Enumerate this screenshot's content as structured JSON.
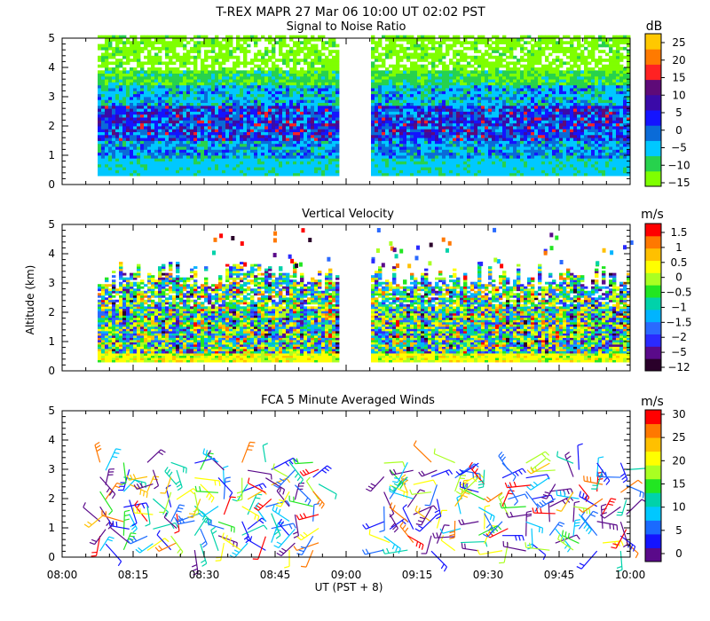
{
  "figure": {
    "title": "T-REX   MAPR 27 Mar 06   10:00 UT   02:02   PST",
    "ylabel": "Altitude (km)",
    "xlabel": "UT  (PST + 8)",
    "x_ticks": [
      "08:00",
      "08:15",
      "08:30",
      "08:45",
      "09:00",
      "09:15",
      "09:30",
      "09:45",
      "10:00"
    ],
    "y_ticks": [
      "0",
      "1",
      "2",
      "3",
      "4",
      "5"
    ]
  },
  "colors": {
    "snr_scale": [
      "#7fff00",
      "#27d24d",
      "#00c8ff",
      "#0a6bd8",
      "#1414ff",
      "#3a0aa8",
      "#5e0a78",
      "#ff2222",
      "#ff7a00",
      "#ffc800"
    ],
    "vel_scale": [
      "#2a002a",
      "#5a0a8a",
      "#2a2aff",
      "#2a6aff",
      "#00b4ff",
      "#00d2aa",
      "#22e622",
      "#aaff22",
      "#ffff00",
      "#ffc000",
      "#ff7800",
      "#ff0000"
    ],
    "wind_scale": [
      "#5a0a8a",
      "#1414ff",
      "#1a6aff",
      "#00c8ff",
      "#00d2aa",
      "#22e622",
      "#aaff22",
      "#ffff00",
      "#ffc000",
      "#ff7800",
      "#ff0000"
    ],
    "gap_start_min": 58,
    "gap_end_min": 65
  },
  "chart_data": [
    {
      "type": "heatmap",
      "title": "Signal to Noise Ratio",
      "unit": "dB",
      "colorbar_ticks": [
        "25",
        "20",
        "15",
        "10",
        "5",
        "0",
        "−5",
        "−10",
        "−15"
      ],
      "colorbar_range": [
        -17,
        29
      ],
      "xlim_minutes": [
        0,
        120
      ],
      "ylim_km": [
        0,
        5
      ],
      "data_alt_range_km": [
        0.3,
        5.0
      ],
      "data_time_range_min": [
        [
          7,
          58
        ],
        [
          65,
          120
        ]
      ]
    },
    {
      "type": "heatmap",
      "title": "Vertical Velocity",
      "unit": "m/s",
      "colorbar_ticks": [
        "1.5",
        "1",
        "0.5",
        "0",
        "−0.5",
        "−1",
        "−1.5",
        "−2",
        "−5",
        "−12"
      ],
      "colorbar_range": [
        -13,
        2
      ],
      "xlim_minutes": [
        0,
        120
      ],
      "ylim_km": [
        0,
        5
      ],
      "data_alt_range_km": [
        0.3,
        3.5
      ],
      "data_time_range_min": [
        [
          7,
          58
        ],
        [
          65,
          120
        ]
      ]
    },
    {
      "type": "scatter",
      "title": "FCA 5 Minute Averaged Winds",
      "unit": "m/s",
      "colorbar_ticks": [
        "30",
        "25",
        "20",
        "15",
        "10",
        "5",
        "0"
      ],
      "colorbar_range": [
        0,
        31
      ],
      "xlim_minutes": [
        0,
        120
      ],
      "ylim_km": [
        0,
        5
      ],
      "wind_alt_range_km": [
        0.2,
        3.5
      ]
    }
  ]
}
